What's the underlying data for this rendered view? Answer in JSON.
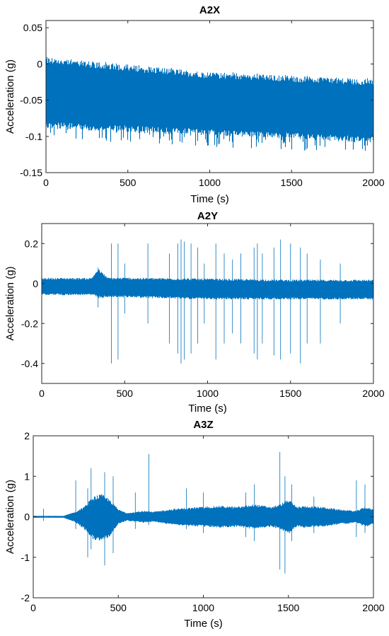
{
  "chart_data": [
    {
      "type": "line",
      "title": "A2X",
      "xlabel": "Time (s)",
      "ylabel": "Acceleration (g)",
      "xlim": [
        0,
        2000
      ],
      "ylim": [
        -0.15,
        0.06
      ],
      "xticks": [
        0,
        500,
        1000,
        1500,
        2000
      ],
      "yticks": [
        -0.15,
        -0.1,
        -0.05,
        0,
        0.05
      ],
      "ytick_labels": [
        "-0.15",
        "-0.1",
        "-0.05",
        "0",
        "0.05"
      ],
      "color": "#0072BD",
      "series": [
        {
          "x": [
            0,
            250,
            500,
            750,
            1000,
            1250,
            1500,
            1750,
            2000
          ],
          "upper": [
            0.0,
            -0.005,
            -0.01,
            -0.015,
            -0.02,
            -0.022,
            -0.025,
            -0.027,
            -0.03
          ],
          "lower": [
            -0.08,
            -0.083,
            -0.085,
            -0.088,
            -0.09,
            -0.093,
            -0.095,
            -0.098,
            -0.1
          ],
          "peak_max": [
            0.01,
            0.005,
            0.0,
            -0.005,
            -0.01,
            -0.012,
            -0.015,
            -0.017,
            -0.02
          ],
          "peak_min": [
            -0.1,
            -0.105,
            -0.11,
            -0.113,
            -0.115,
            -0.118,
            -0.12,
            -0.12,
            -0.12
          ]
        }
      ]
    },
    {
      "type": "line",
      "title": "A2Y",
      "xlabel": "Time (s)",
      "ylabel": "Acceleration (g)",
      "xlim": [
        0,
        2000
      ],
      "ylim": [
        -0.5,
        0.3
      ],
      "xticks": [
        0,
        500,
        1000,
        1500,
        2000
      ],
      "yticks": [
        -0.4,
        -0.2,
        0,
        0.2
      ],
      "ytick_labels": [
        "-0.4",
        "-0.2",
        "0",
        "0.2"
      ],
      "color": "#0072BD",
      "series": [
        {
          "x": [
            0,
            300,
            340,
            400,
            500,
            1000,
            1500,
            2000
          ],
          "upper": [
            0.02,
            0.02,
            0.06,
            0.02,
            0.02,
            0.015,
            0.01,
            0.01
          ],
          "lower": [
            -0.05,
            -0.05,
            -0.06,
            -0.06,
            -0.06,
            -0.07,
            -0.07,
            -0.07
          ],
          "spikes": [
            [
              340,
              -0.12,
              0.08
            ],
            [
              420,
              -0.4,
              0.2
            ],
            [
              460,
              -0.38,
              0.2
            ],
            [
              500,
              -0.15,
              0.1
            ],
            [
              640,
              -0.2,
              0.2
            ],
            [
              770,
              -0.3,
              0.15
            ],
            [
              820,
              -0.35,
              0.2
            ],
            [
              840,
              -0.4,
              0.22
            ],
            [
              860,
              -0.38,
              0.21
            ],
            [
              900,
              -0.35,
              0.2
            ],
            [
              940,
              -0.3,
              0.18
            ],
            [
              980,
              -0.2,
              0.1
            ],
            [
              1050,
              -0.38,
              0.2
            ],
            [
              1100,
              -0.3,
              0.15
            ],
            [
              1150,
              -0.25,
              0.12
            ],
            [
              1200,
              -0.3,
              0.15
            ],
            [
              1280,
              -0.35,
              0.18
            ],
            [
              1300,
              -0.38,
              0.2
            ],
            [
              1330,
              -0.3,
              0.15
            ],
            [
              1400,
              -0.36,
              0.18
            ],
            [
              1440,
              -0.38,
              0.22
            ],
            [
              1500,
              -0.35,
              0.2
            ],
            [
              1560,
              -0.4,
              0.18
            ],
            [
              1600,
              -0.3,
              0.15
            ],
            [
              1680,
              -0.3,
              0.12
            ],
            [
              1800,
              -0.2,
              0.1
            ]
          ]
        }
      ]
    },
    {
      "type": "line",
      "title": "A3Z",
      "xlabel": "Time (s)",
      "ylabel": "Acceleration (g)",
      "xlim": [
        0,
        2000
      ],
      "ylim": [
        -2,
        2
      ],
      "xticks": [
        0,
        500,
        1000,
        1500,
        2000
      ],
      "yticks": [
        -2,
        -1,
        0,
        1,
        2
      ],
      "ytick_labels": [
        "-2",
        "-1",
        "0",
        "1",
        "2"
      ],
      "color": "#0072BD",
      "series": [
        {
          "x": [
            0,
            180,
            200,
            250,
            300,
            350,
            400,
            450,
            500,
            550,
            600,
            650,
            700,
            800,
            900,
            1000,
            1100,
            1200,
            1300,
            1400,
            1450,
            1500,
            1550,
            1600,
            1700,
            1800,
            1900,
            1950,
            2000
          ],
          "upper": [
            0.02,
            0.02,
            0.05,
            0.1,
            0.2,
            0.4,
            0.45,
            0.35,
            0.15,
            0.08,
            0.1,
            0.12,
            0.1,
            0.15,
            0.18,
            0.2,
            0.22,
            0.2,
            0.25,
            0.2,
            0.25,
            0.35,
            0.2,
            0.22,
            0.2,
            0.15,
            0.12,
            0.2,
            0.15
          ],
          "lower": [
            -0.02,
            -0.02,
            -0.05,
            -0.12,
            -0.25,
            -0.45,
            -0.5,
            -0.4,
            -0.15,
            -0.08,
            -0.1,
            -0.12,
            -0.1,
            -0.15,
            -0.18,
            -0.2,
            -0.22,
            -0.2,
            -0.25,
            -0.2,
            -0.25,
            -0.35,
            -0.2,
            -0.22,
            -0.2,
            -0.15,
            -0.12,
            -0.2,
            -0.15
          ],
          "spikes": [
            [
              60,
              -0.1,
              0.2
            ],
            [
              250,
              -0.3,
              0.9
            ],
            [
              320,
              -1.0,
              0.7
            ],
            [
              340,
              -0.8,
              1.2
            ],
            [
              420,
              -1.2,
              1.1
            ],
            [
              470,
              -0.9,
              1.0
            ],
            [
              600,
              -0.3,
              0.6
            ],
            [
              680,
              -0.2,
              1.55
            ],
            [
              900,
              -0.3,
              0.7
            ],
            [
              1000,
              -0.4,
              0.6
            ],
            [
              1250,
              -0.5,
              0.6
            ],
            [
              1300,
              -0.6,
              0.8
            ],
            [
              1450,
              -1.3,
              1.6
            ],
            [
              1480,
              -1.4,
              1.0
            ],
            [
              1520,
              -0.6,
              0.8
            ],
            [
              1650,
              -0.4,
              0.5
            ],
            [
              1900,
              -0.5,
              0.9
            ],
            [
              1950,
              -0.4,
              0.8
            ]
          ]
        }
      ]
    }
  ]
}
